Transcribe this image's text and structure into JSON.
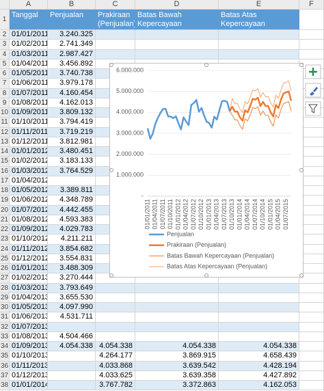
{
  "column_headers": [
    "A",
    "B",
    "C",
    "D",
    "E",
    "F"
  ],
  "row_numbers": [
    1,
    2,
    3,
    4,
    5,
    6,
    7,
    8,
    9,
    10,
    11,
    12,
    13,
    14,
    15,
    16,
    17,
    18,
    19,
    20,
    21,
    22,
    23,
    24,
    25,
    26,
    27,
    28,
    29,
    30,
    31,
    32,
    33,
    34,
    35,
    36,
    37,
    38
  ],
  "table": {
    "header": [
      "Tanggal",
      "Penjualan",
      "Prakiraan (Penjualan)",
      "Batas Bawah Kepercayaan (Penjualan)",
      "Batas Atas Kepercayaan (Penjualan)"
    ],
    "rows": [
      [
        "01/01/2011",
        "3.240.325",
        null,
        null,
        null
      ],
      [
        "01/02/2011",
        "2.741.349",
        null,
        null,
        null
      ],
      [
        "01/03/2011",
        "2.987.427",
        null,
        null,
        null
      ],
      [
        "01/04/2011",
        "3.456.892",
        null,
        null,
        null
      ],
      [
        "01/05/2011",
        "3.740.738",
        null,
        null,
        null
      ],
      [
        "01/06/2011",
        "3.979.178",
        null,
        null,
        null
      ],
      [
        "01/07/2011",
        "4.160.454",
        null,
        null,
        null
      ],
      [
        "01/08/2011",
        "4.162.013",
        null,
        null,
        null
      ],
      [
        "01/09/2011",
        "3.809.132",
        null,
        null,
        null
      ],
      [
        "01/10/2011",
        "3.794.419",
        null,
        null,
        null
      ],
      [
        "01/11/2011",
        "3.719.219",
        null,
        null,
        null
      ],
      [
        "01/12/2011",
        "3.812.981",
        null,
        null,
        null
      ],
      [
        "01/01/2012",
        "3.480.451",
        null,
        null,
        null
      ],
      [
        "01/02/2012",
        "3.183.133",
        null,
        null,
        null
      ],
      [
        "01/03/2012",
        "3.764.529",
        null,
        null,
        null
      ],
      [
        "01/04/2012",
        null,
        null,
        null,
        null
      ],
      [
        "01/05/2012",
        "3.389.811",
        null,
        null,
        null
      ],
      [
        "01/06/2012",
        "4.348.789",
        null,
        null,
        null
      ],
      [
        "01/07/2012",
        "4.442.455",
        null,
        null,
        null
      ],
      [
        "01/08/2012",
        "4.593.383",
        null,
        null,
        null
      ],
      [
        "01/09/2012",
        "4.029.783",
        null,
        null,
        null
      ],
      [
        "01/10/2012",
        "4.211.211",
        null,
        null,
        null
      ],
      [
        "01/11/2012",
        "3.854.682",
        null,
        null,
        null
      ],
      [
        "01/12/2012",
        "3.554.831",
        null,
        null,
        null
      ],
      [
        "01/01/2013",
        "3.488.309",
        null,
        null,
        null
      ],
      [
        "01/02/2013",
        "3.270.444",
        null,
        null,
        null
      ],
      [
        "01/03/2013",
        "3.793.649",
        null,
        null,
        null
      ],
      [
        "01/04/2013",
        "3.655.530",
        null,
        null,
        null
      ],
      [
        "01/05/2013",
        "4.097.990",
        null,
        null,
        null
      ],
      [
        "01/06/2013",
        "4.531.711",
        null,
        null,
        null
      ],
      [
        "01/07/2013",
        null,
        null,
        null,
        null
      ],
      [
        "01/08/2013",
        "4.504.466",
        null,
        null,
        null
      ],
      [
        "01/09/2013",
        "4.054.338",
        "4.054.338",
        "4.054.338",
        "4.054.338"
      ],
      [
        "01/10/2013",
        null,
        "4.264.177",
        "3.869.915",
        "4.658.439"
      ],
      [
        "01/11/2013",
        null,
        "4.033.868",
        "3.639.542",
        "4.428.194"
      ],
      [
        "01/12/2013",
        null,
        "4.033.625",
        "3.639.358",
        "4.427.892"
      ],
      [
        "01/01/2014",
        null,
        "3.767.782",
        "3.372.863",
        "4.162.053"
      ]
    ]
  },
  "chart_data": {
    "type": "line",
    "categories": [
      "01/01/2011",
      null,
      null,
      "01/04/2011",
      null,
      null,
      "01/07/2011",
      null,
      null,
      "01/10/2011",
      null,
      null,
      "01/01/2012",
      null,
      null,
      "01/04/2012",
      null,
      null,
      "01/07/2012",
      null,
      null,
      "01/10/2012",
      null,
      null,
      "01/01/2013",
      null,
      null,
      "01/04/2013",
      null,
      null,
      "01/07/2013",
      null,
      null,
      "01/10/2013",
      null,
      null,
      "01/01/2014",
      null,
      null,
      "01/04/2014",
      null,
      null,
      "01/07/2014",
      null,
      null,
      "01/10/2014",
      null,
      null,
      "01/01/2015",
      null,
      null,
      "01/04/2015",
      null,
      null,
      "01/07/2015",
      null,
      null
    ],
    "ylim": [
      0,
      6000000
    ],
    "yticks": [
      {
        "value": 0,
        "label": "-"
      },
      {
        "value": 1000000,
        "label": "1.000.000"
      },
      {
        "value": 2000000,
        "label": "2.000.000"
      },
      {
        "value": 3000000,
        "label": "3.000.000"
      },
      {
        "value": 4000000,
        "label": "4.000.000"
      },
      {
        "value": 5000000,
        "label": "5.000.000"
      },
      {
        "value": 6000000,
        "label": "6.000.000"
      }
    ],
    "grid": true,
    "legend": "bottom",
    "series": [
      {
        "name": "Penjualan",
        "color": "#5b9bd5",
        "width": 2.5,
        "values": [
          3240325,
          2741349,
          2987427,
          3456892,
          3740738,
          3979178,
          4160454,
          4162013,
          3809132,
          3794419,
          3719219,
          3812981,
          3480451,
          3183133,
          3764529,
          3560000,
          3389811,
          4348789,
          4442455,
          4593383,
          4029783,
          4211211,
          3854682,
          3554831,
          3488309,
          3270444,
          3793649,
          3655530,
          4097990,
          4531711,
          4550000,
          4504466,
          4054338,
          null,
          null,
          null,
          null,
          null,
          null,
          null,
          null,
          null,
          null,
          null,
          null,
          null,
          null,
          null,
          null,
          null,
          null,
          null,
          null,
          null,
          null,
          null,
          null
        ]
      },
      {
        "name": "Prakiraan (Penjualan)",
        "color": "#ed7d31",
        "width": 2.5,
        "values": [
          null,
          null,
          null,
          null,
          null,
          null,
          null,
          null,
          null,
          null,
          null,
          null,
          null,
          null,
          null,
          null,
          null,
          null,
          null,
          null,
          null,
          null,
          null,
          null,
          null,
          null,
          null,
          null,
          null,
          null,
          null,
          null,
          4054338,
          4264177,
          4033868,
          4033625,
          3767782,
          3600000,
          4100000,
          4000000,
          4300000,
          4650000,
          4600000,
          4700000,
          4300000,
          4500000,
          4300000,
          4300000,
          4000000,
          3800000,
          4350000,
          4200000,
          4600000,
          4900000,
          4950000,
          5000000,
          4550000
        ]
      },
      {
        "name": "Batas Bawah Kepercayaan (Penjualan)",
        "color": "#ed7d31",
        "width": 1,
        "values": [
          null,
          null,
          null,
          null,
          null,
          null,
          null,
          null,
          null,
          null,
          null,
          null,
          null,
          null,
          null,
          null,
          null,
          null,
          null,
          null,
          null,
          null,
          null,
          null,
          null,
          null,
          null,
          null,
          null,
          null,
          null,
          null,
          4054338,
          3869915,
          3639542,
          3639358,
          3372863,
          3200000,
          3695000,
          3590000,
          3885000,
          4230000,
          4175000,
          4270000,
          3865000,
          4060000,
          3855000,
          3850000,
          3545000,
          3340000,
          3885000,
          3730000,
          4125000,
          4420000,
          4465000,
          4510000,
          4055000
        ]
      },
      {
        "name": "Batas Atas Kepercayaan (Penjualan)",
        "color": "#f4a46c",
        "width": 1,
        "values": [
          null,
          null,
          null,
          null,
          null,
          null,
          null,
          null,
          null,
          null,
          null,
          null,
          null,
          null,
          null,
          null,
          null,
          null,
          null,
          null,
          null,
          null,
          null,
          null,
          null,
          null,
          null,
          null,
          null,
          null,
          null,
          null,
          4054338,
          4658439,
          4428194,
          4427892,
          4162053,
          4000000,
          4505000,
          4410000,
          4715000,
          5070000,
          5025000,
          5130000,
          4735000,
          4940000,
          4745000,
          4750000,
          4455000,
          4260000,
          4815000,
          4670000,
          5075000,
          5380000,
          5435000,
          5490000,
          5045000
        ]
      }
    ]
  }
}
